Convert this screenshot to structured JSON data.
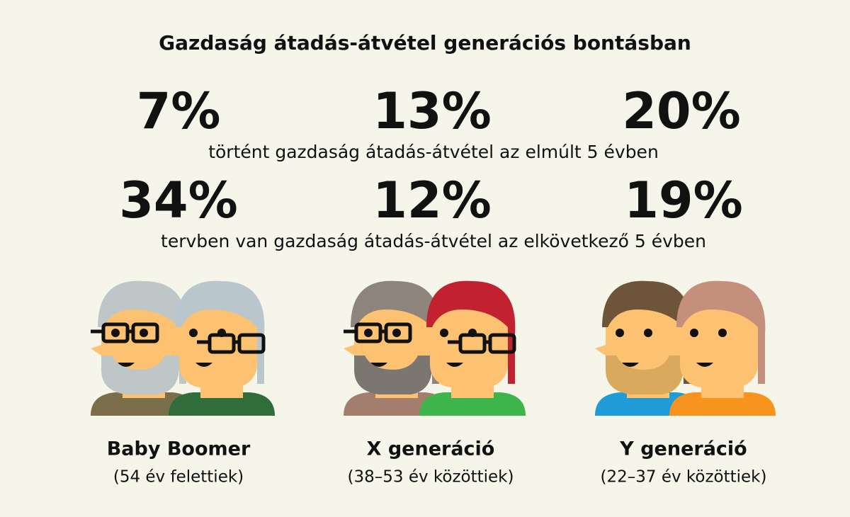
{
  "title": "Gazdaság átadás-átvétel generációs bontásban",
  "rows": [
    {
      "values": [
        "7%",
        "13%",
        "20%"
      ],
      "caption": "történt gazdaság átadás-átvétel az elmúlt 5 évben"
    },
    {
      "values": [
        "34%",
        "12%",
        "19%"
      ],
      "caption": "tervben van gazdaság átadás-átvétel az elkövetkező 5 évben"
    }
  ],
  "generations": [
    {
      "name": "Baby Boomer",
      "range": "(54 év felettiek)"
    },
    {
      "name": "X generáció",
      "range": "(38–53 év közöttiek)"
    },
    {
      "name": "Y generáció",
      "range": "(22–37 év közöttiek)"
    }
  ]
}
